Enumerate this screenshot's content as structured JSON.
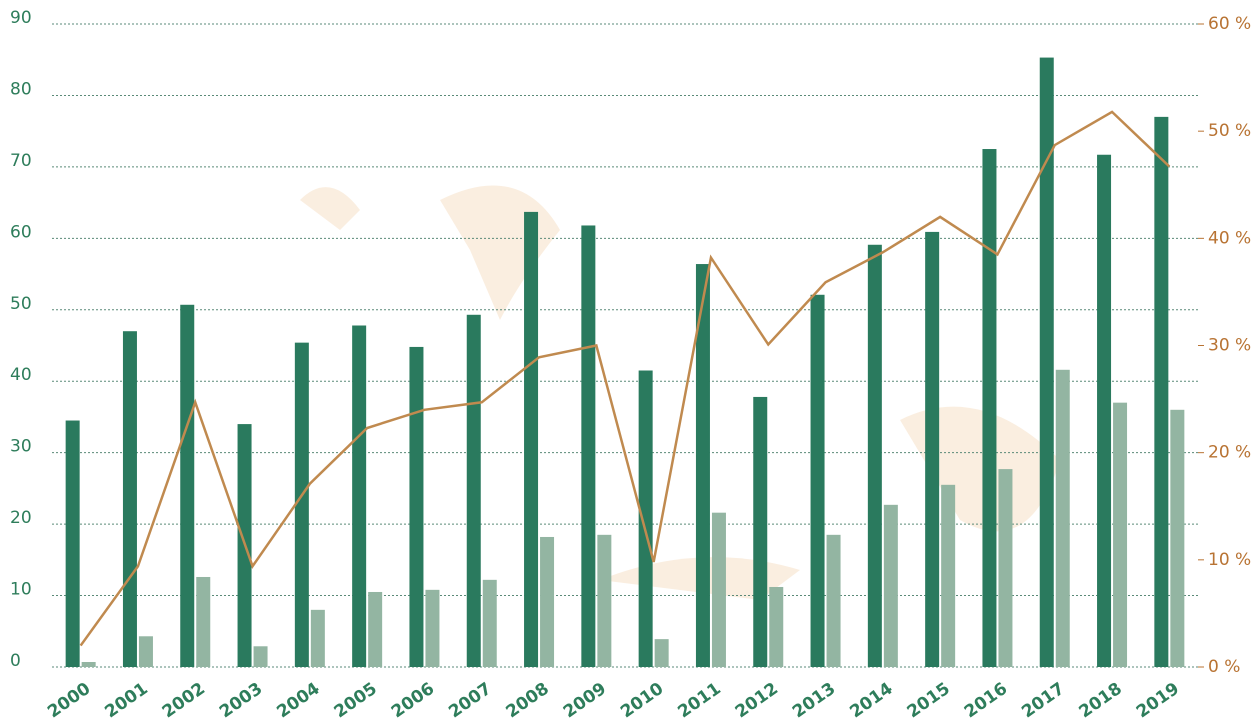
{
  "chart_data": {
    "type": "bar-line",
    "categories": [
      "2000",
      "2001",
      "2002",
      "2003",
      "2004",
      "2005",
      "2006",
      "2007",
      "2008",
      "2009",
      "2010",
      "2011",
      "2012",
      "2013",
      "2014",
      "2015",
      "2016",
      "2017",
      "2018",
      "2019"
    ],
    "series": [
      {
        "type": "bar",
        "color": "#2a7a5e",
        "values": [
          34.5,
          47,
          50.7,
          34,
          45.4,
          47.8,
          44.8,
          49.3,
          63.7,
          61.8,
          41.5,
          56.4,
          37.8,
          52.1,
          59.1,
          60.9,
          72.5,
          85.3,
          71.7,
          77
        ]
      },
      {
        "type": "bar",
        "color": "#93b5a2",
        "values": [
          0.7,
          4.3,
          12.6,
          2.9,
          8,
          10.5,
          10.8,
          12.2,
          18.2,
          18.5,
          3.9,
          21.6,
          11.2,
          18.5,
          22.7,
          25.5,
          27.7,
          41.6,
          37,
          36
        ]
      },
      {
        "type": "line",
        "axis": "y2",
        "color": "#c08a4f",
        "values": [
          2,
          9.4,
          24.7,
          9.4,
          17.1,
          22.3,
          24,
          24.7,
          28.9,
          30,
          9.8,
          38.2,
          30.1,
          35.9,
          38.7,
          42,
          38.5,
          48.7,
          51.8,
          46.7
        ]
      }
    ],
    "ylim": [
      0,
      90
    ],
    "yticks": [
      0,
      10,
      20,
      30,
      40,
      50,
      60,
      70,
      80,
      90
    ],
    "y2lim": [
      0,
      60
    ],
    "y2ticks": [
      {
        "value": 0,
        "label": "0 %"
      },
      {
        "value": 10,
        "label": "10 %"
      },
      {
        "value": 20,
        "label": "20 %"
      },
      {
        "value": 30,
        "label": "30 %"
      },
      {
        "value": 40,
        "label": "40 %"
      },
      {
        "value": 50,
        "label": "50 %"
      },
      {
        "value": 60,
        "label": "60 %"
      }
    ],
    "grid": true,
    "ytick_color": "#2e7d5b",
    "y2tick_color": "#b87333"
  }
}
